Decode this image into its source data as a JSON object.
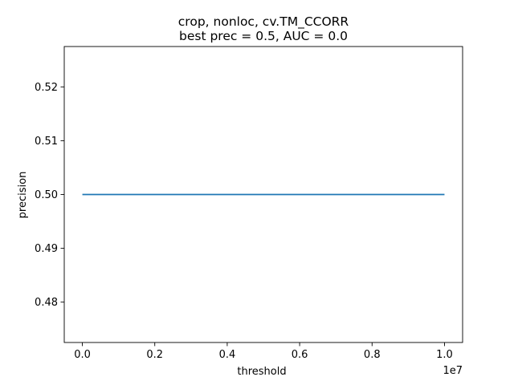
{
  "chart_data": {
    "type": "line",
    "title_line1": "crop, nonloc, cv.TM_CCORR",
    "title_line2": "best prec = 0.5, AUC = 0.0",
    "xlabel": "threshold",
    "ylabel": "precision",
    "x_offset_text": "1e7",
    "x_scale": 10000000,
    "xlim": [
      -0.05,
      1.05
    ],
    "ylim": [
      0.4725,
      0.5275
    ],
    "x_ticks": [
      0.0,
      0.2,
      0.4,
      0.6,
      0.8,
      1.0
    ],
    "x_tick_labels": [
      "0.0",
      "0.2",
      "0.4",
      "0.6",
      "0.8",
      "1.0"
    ],
    "y_ticks": [
      0.48,
      0.49,
      0.5,
      0.51,
      0.52
    ],
    "y_tick_labels": [
      "0.48",
      "0.49",
      "0.50",
      "0.51",
      "0.52"
    ],
    "grid": false,
    "series": [
      {
        "color": "#1f77b4",
        "x": [
          0.0,
          1.0
        ],
        "y": [
          0.5,
          0.5
        ]
      }
    ]
  }
}
